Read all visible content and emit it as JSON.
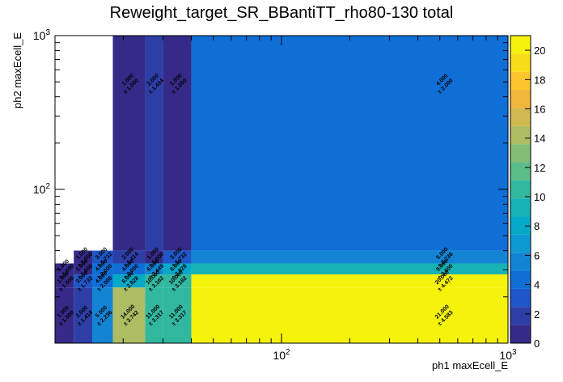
{
  "chart_data": {
    "type": "heatmap",
    "title": "Reweight_target_SR_BBantiTT_rho80-130 total",
    "xlabel": "ph1 maxEcell_E",
    "ylabel": "ph2 maxEcell_E",
    "x_scale": "log",
    "y_scale": "log",
    "xlim": [
      10,
      1000
    ],
    "ylim": [
      10,
      1000
    ],
    "zlim": [
      0,
      21
    ],
    "x_tick_labels": [
      {
        "value": 100,
        "label": "10",
        "sup": "2"
      },
      {
        "value": 1000,
        "label": "10",
        "sup": "3"
      }
    ],
    "y_tick_labels": [
      {
        "value": 100,
        "label": "10",
        "sup": "2"
      },
      {
        "value": 1000,
        "label": "10",
        "sup": "3"
      }
    ],
    "z_ticks": [
      0,
      2,
      4,
      6,
      8,
      10,
      12,
      14,
      16,
      18,
      20
    ],
    "colors": {
      "empty": "#ffffff",
      "palette": [
        "#352a87",
        "#2d3ea6",
        "#1f57c8",
        "#0f6fd6",
        "#1384d4",
        "#0f99d2",
        "#06a8c7",
        "#17b2b4",
        "#33b8a0",
        "#5bbd8a",
        "#86bd76",
        "#aebd63",
        "#d2b94f",
        "#efb73b",
        "#fcc52b",
        "#f8dc1a",
        "#f5f20c"
      ]
    },
    "cells": [
      {
        "x0": 10,
        "x1": 18,
        "y0": 40,
        "y1": 1000,
        "value": 0
      },
      {
        "x0": 18,
        "x1": 25,
        "y0": 40,
        "y1": 1000,
        "value": 1,
        "label": "1.000",
        "err": "± 1.000"
      },
      {
        "x0": 25,
        "x1": 30,
        "y0": 40,
        "y1": 1000,
        "value": 2,
        "label": "2.000",
        "err": "± 1.414"
      },
      {
        "x0": 30,
        "x1": 40,
        "y0": 40,
        "y1": 1000,
        "value": 1,
        "label": "1.000",
        "err": "± 1.000"
      },
      {
        "x0": 40,
        "x1": 1000,
        "y0": 40,
        "y1": 1000,
        "value": 4,
        "label": "4.000",
        "err": "± 2.000"
      },
      {
        "x0": 12.1,
        "x1": 14.6,
        "y0": 33,
        "y1": 40,
        "value": 1,
        "label": "1.000",
        "err": "± 1.000"
      },
      {
        "x0": 14.6,
        "x1": 18,
        "y0": 33,
        "y1": 40,
        "value": 3,
        "label": "3.000",
        "err": "± 1.732"
      },
      {
        "x0": 18,
        "x1": 25,
        "y0": 33,
        "y1": 40,
        "value": 2,
        "label": "2.000",
        "err": "± 1.414"
      },
      {
        "x0": 25,
        "x1": 30,
        "y0": 33,
        "y1": 40,
        "value": 1,
        "label": "1.000",
        "err": "± 1.000"
      },
      {
        "x0": 30,
        "x1": 40,
        "y0": 33,
        "y1": 40,
        "value": 3,
        "label": "3.000",
        "err": "± 1.732"
      },
      {
        "x0": 40,
        "x1": 1000,
        "y0": 33,
        "y1": 40,
        "value": 5,
        "label": "5.000",
        "err": "± 2.236"
      },
      {
        "x0": 10,
        "x1": 12.1,
        "y0": 28,
        "y1": 33,
        "value": 1,
        "label": "1.000",
        "err": "± 1.000"
      },
      {
        "x0": 12.1,
        "x1": 14.6,
        "y0": 28,
        "y1": 33,
        "value": 1,
        "label": "1.000",
        "err": "± 1.000"
      },
      {
        "x0": 14.6,
        "x1": 18,
        "y0": 28,
        "y1": 33,
        "value": 4,
        "label": "4.000",
        "err": "± 2.000"
      },
      {
        "x0": 18,
        "x1": 25,
        "y0": 28,
        "y1": 33,
        "value": 4,
        "label": "4.000",
        "err": "± 2.000"
      },
      {
        "x0": 25,
        "x1": 30,
        "y0": 28,
        "y1": 33,
        "value": 6,
        "label": "6.000",
        "err": "± 2.449"
      },
      {
        "x0": 30,
        "x1": 40,
        "y0": 28,
        "y1": 33,
        "value": 8,
        "label": "8.000",
        "err": "± 2.828"
      },
      {
        "x0": 40,
        "x1": 1000,
        "y0": 28,
        "y1": 33,
        "value": 9,
        "label": "9.000",
        "err": "± 3.000"
      },
      {
        "x0": 10,
        "x1": 12.1,
        "y0": 23,
        "y1": 28,
        "value": 1,
        "label": "1.000",
        "err": "± 1.000"
      },
      {
        "x0": 12.1,
        "x1": 14.6,
        "y0": 23,
        "y1": 28,
        "value": 3,
        "label": "3.000",
        "err": "± 1.732"
      },
      {
        "x0": 14.6,
        "x1": 18,
        "y0": 23,
        "y1": 28,
        "value": 4,
        "label": "4.000",
        "err": "± 2.000"
      },
      {
        "x0": 18,
        "x1": 25,
        "y0": 23,
        "y1": 28,
        "value": 8,
        "label": "8.000",
        "err": "± 2.828"
      },
      {
        "x0": 25,
        "x1": 30,
        "y0": 23,
        "y1": 28,
        "value": 10,
        "label": "10.000",
        "err": "± 3.162"
      },
      {
        "x0": 30,
        "x1": 40,
        "y0": 23,
        "y1": 28,
        "value": 10,
        "label": "10.000",
        "err": "± 3.162"
      },
      {
        "x0": 40,
        "x1": 1000,
        "y0": 23,
        "y1": 28,
        "value": 20,
        "label": "20.000",
        "err": "± 4.472"
      },
      {
        "x0": 10,
        "x1": 12.1,
        "y0": 10,
        "y1": 23,
        "value": 1,
        "label": "1.000",
        "err": "± 1.000"
      },
      {
        "x0": 12.1,
        "x1": 14.6,
        "y0": 10,
        "y1": 23,
        "value": 2,
        "label": "2.000",
        "err": "± 1.414"
      },
      {
        "x0": 14.6,
        "x1": 18,
        "y0": 10,
        "y1": 23,
        "value": 5,
        "label": "5.000",
        "err": "± 2.236"
      },
      {
        "x0": 18,
        "x1": 25,
        "y0": 10,
        "y1": 23,
        "value": 14,
        "label": "14.000",
        "err": "± 3.742"
      },
      {
        "x0": 25,
        "x1": 30,
        "y0": 10,
        "y1": 23,
        "value": 11,
        "label": "11.000",
        "err": "± 3.317"
      },
      {
        "x0": 30,
        "x1": 40,
        "y0": 10,
        "y1": 23,
        "value": 11,
        "label": "11.000",
        "err": "± 3.317"
      },
      {
        "x0": 40,
        "x1": 1000,
        "y0": 10,
        "y1": 23,
        "value": 21,
        "label": "21.000",
        "err": "± 4.583"
      }
    ]
  }
}
